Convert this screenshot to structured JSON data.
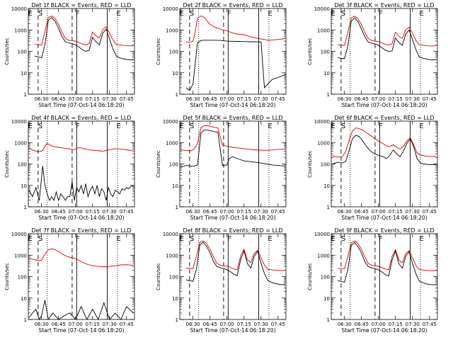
{
  "common": {
    "ylabel": "Counts/sec",
    "xlabel": "Start Time (07-Oct-14 06:18:20)",
    "yticks": [
      "1",
      "10",
      "100",
      "1000",
      "10000"
    ],
    "xticks": [
      "06:30",
      "06:45",
      "07:00",
      "07:15",
      "07:30",
      "07:45"
    ],
    "colors": {
      "events": "#000000",
      "lld": "#dd0000"
    }
  },
  "chart_data": [
    {
      "type": "line",
      "title": "Det 1f BLACK = Events, RED = LLD",
      "region_labels": [
        "E",
        "S",
        "F",
        "E"
      ],
      "xlim": [
        "06:18:20",
        "07:52"
      ],
      "ylim": [
        1,
        10000
      ],
      "yscale": "log",
      "x": [
        "06:24",
        "06:30",
        "06:33",
        "06:36",
        "06:39",
        "06:42",
        "06:45",
        "06:48",
        "06:51",
        "06:54",
        "06:57",
        "07:00",
        "07:03",
        "07:06",
        "07:09",
        "07:12",
        "07:15",
        "07:18",
        "07:21",
        "07:24",
        "07:27",
        "07:30",
        "07:33",
        "07:36",
        "07:39",
        "07:42",
        "07:45",
        "07:48",
        "07:51"
      ],
      "series": [
        {
          "name": "Events",
          "values": [
            60,
            50,
            200,
            2800,
            3800,
            2500,
            1200,
            500,
            280,
            250,
            230,
            200,
            160,
            120,
            100,
            110,
            450,
            280,
            200,
            700,
            1100,
            380,
            130,
            60,
            50,
            45,
            42,
            40,
            42
          ]
        },
        {
          "name": "LLD",
          "values": [
            210,
            200,
            850,
            3800,
            4500,
            3400,
            1800,
            800,
            400,
            330,
            310,
            300,
            260,
            220,
            200,
            230,
            800,
            520,
            420,
            1050,
            1400,
            720,
            330,
            210,
            200,
            190,
            185,
            180,
            185
          ]
        }
      ]
    },
    {
      "type": "line",
      "title": "Det 2f BLACK = Events, RED = LLD",
      "region_labels": [
        "E",
        "S",
        "F",
        "E"
      ],
      "xlim": [
        "06:18:20",
        "07:52"
      ],
      "ylim": [
        1,
        10000
      ],
      "yscale": "log",
      "x": [
        "06:24",
        "06:27",
        "06:30",
        "06:32",
        "06:34",
        "06:37",
        "06:40",
        "06:45",
        "06:50",
        "06:55",
        "07:00",
        "07:05",
        "07:10",
        "07:15",
        "07:20",
        "07:25",
        "07:30",
        "07:33",
        "07:36",
        "07:40",
        "07:45",
        "07:51"
      ],
      "series": [
        {
          "name": "Events",
          "values": [
            2,
            1.5,
            3,
            30,
            250,
            320,
            330,
            330,
            330,
            320,
            300,
            295,
            290,
            285,
            280,
            280,
            275,
            2,
            3,
            5,
            6,
            8
          ]
        },
        {
          "name": "LLD",
          "values": [
            280,
            260,
            300,
            900,
            3500,
            4500,
            3800,
            1800,
            1300,
            1050,
            900,
            720,
            620,
            600,
            490,
            420,
            380,
            360,
            330,
            340,
            360,
            390
          ]
        }
      ]
    },
    {
      "type": "line",
      "title": "Det 3f BLACK = Events, RED = LLD",
      "region_labels": [
        "E",
        "S",
        "F",
        "E"
      ],
      "xlim": [
        "06:18:20",
        "07:52"
      ],
      "ylim": [
        1,
        10000
      ],
      "yscale": "log",
      "x": [
        "06:24",
        "06:30",
        "06:33",
        "06:36",
        "06:39",
        "06:42",
        "06:45",
        "06:48",
        "06:51",
        "06:54",
        "06:57",
        "07:00",
        "07:03",
        "07:06",
        "07:09",
        "07:12",
        "07:15",
        "07:18",
        "07:21",
        "07:24",
        "07:27",
        "07:30",
        "07:33",
        "07:36",
        "07:39",
        "07:42",
        "07:45",
        "07:48",
        "07:51"
      ],
      "series": [
        {
          "name": "Events",
          "values": [
            50,
            45,
            180,
            2600,
            3700,
            2400,
            1100,
            480,
            270,
            240,
            220,
            195,
            150,
            115,
            100,
            105,
            420,
            260,
            190,
            650,
            1000,
            350,
            120,
            55,
            48,
            44,
            41,
            40,
            41
          ]
        },
        {
          "name": "LLD",
          "values": [
            200,
            190,
            800,
            3700,
            4400,
            3300,
            1750,
            780,
            390,
            320,
            300,
            290,
            250,
            215,
            195,
            225,
            780,
            500,
            410,
            1000,
            1350,
            700,
            320,
            205,
            195,
            185,
            180,
            178,
            182
          ]
        }
      ]
    },
    {
      "type": "line",
      "title": "Det 4f BLACK = Events, RED = LLD",
      "region_labels": [
        "E",
        "S",
        "F",
        "E"
      ],
      "xlim": [
        "06:18:20",
        "07:52"
      ],
      "ylim": [
        1,
        10000
      ],
      "yscale": "log",
      "x": [
        "06:19",
        "06:22",
        "06:25",
        "06:28",
        "06:31",
        "06:33",
        "06:35",
        "06:37",
        "06:39",
        "06:41",
        "06:43",
        "06:45",
        "06:47",
        "06:49",
        "06:51",
        "06:53",
        "06:55",
        "06:57",
        "06:59",
        "07:01",
        "07:03",
        "07:05",
        "07:07",
        "07:09",
        "07:11",
        "07:13",
        "07:15",
        "07:17",
        "07:19",
        "07:21",
        "07:23",
        "07:25",
        "07:27",
        "07:29",
        "07:31",
        "07:33",
        "07:35",
        "07:37",
        "07:39",
        "07:41",
        "07:43",
        "07:45",
        "07:47",
        "07:49",
        "07:51"
      ],
      "series": [
        {
          "name": "Events",
          "values": [
            6,
            3,
            8,
            2,
            80,
            10,
            4,
            2,
            3,
            2,
            5,
            2,
            4,
            3,
            2,
            3,
            3,
            15,
            2,
            8,
            5,
            10,
            4,
            12,
            3,
            6,
            9,
            4,
            10,
            3,
            7,
            5,
            2,
            8,
            4,
            3,
            6,
            5,
            4,
            7,
            6,
            8,
            7,
            9,
            10
          ]
        },
        {
          "name": "LLD",
          "values": [
            550,
            450,
            400,
            380,
            420,
            700,
            900,
            800,
            700,
            650,
            620,
            600,
            580,
            560,
            540,
            520,
            500,
            480,
            470,
            520,
            600,
            560,
            520,
            490,
            470,
            450,
            440,
            430,
            420,
            410,
            400,
            400,
            420,
            450,
            480,
            500,
            520,
            510,
            500,
            490,
            480,
            460,
            440,
            420,
            410
          ]
        }
      ]
    },
    {
      "type": "line",
      "title": "Det 5f BLACK = Events, RED = LLD",
      "region_labels": [
        "E",
        "S",
        "F",
        "E"
      ],
      "xlim": [
        "06:18:20",
        "07:52"
      ],
      "ylim": [
        1,
        10000
      ],
      "yscale": "log",
      "x": [
        "06:19",
        "06:24",
        "06:28",
        "06:31",
        "06:34",
        "06:37",
        "06:40",
        "06:43",
        "06:45",
        "06:48",
        "06:52",
        "06:56",
        "07:00",
        "07:02",
        "07:05",
        "07:10",
        "07:15",
        "07:20",
        "07:25",
        "07:30",
        "07:35",
        "07:40",
        "07:45",
        "07:51"
      ],
      "series": [
        {
          "name": "Events",
          "values": [
            70,
            85,
            80,
            80,
            90,
            2800,
            3800,
            3800,
            3600,
            3300,
            3000,
            85,
            90,
            180,
            220,
            170,
            140,
            130,
            120,
            110,
            100,
            90,
            85,
            80
          ]
        },
        {
          "name": "LLD",
          "values": [
            450,
            420,
            410,
            500,
            900,
            5000,
            6200,
            6100,
            5800,
            5200,
            4800,
            750,
            680,
            650,
            600,
            560,
            520,
            480,
            460,
            440,
            430,
            450,
            480,
            500
          ]
        }
      ]
    },
    {
      "type": "line",
      "title": "Det 6f BLACK = Events, RED = LLD",
      "region_labels": [
        "E",
        "S",
        "F",
        "E"
      ],
      "xlim": [
        "06:18:20",
        "07:52"
      ],
      "ylim": [
        1,
        10000
      ],
      "yscale": "log",
      "x": [
        "06:19",
        "06:24",
        "06:28",
        "06:31",
        "06:34",
        "06:37",
        "06:40",
        "06:43",
        "06:46",
        "06:49",
        "06:52",
        "06:55",
        "06:58",
        "07:01",
        "07:04",
        "07:07",
        "07:10",
        "07:13",
        "07:16",
        "07:19",
        "07:22",
        "07:25",
        "07:28",
        "07:31",
        "07:34",
        "07:37",
        "07:40",
        "07:43",
        "07:46",
        "07:51"
      ],
      "series": [
        {
          "name": "Events",
          "values": [
            100,
            120,
            110,
            130,
            400,
            1500,
            2200,
            1900,
            1200,
            700,
            450,
            330,
            280,
            240,
            220,
            180,
            250,
            450,
            300,
            220,
            400,
            900,
            1500,
            650,
            180,
            110,
            100,
            95,
            92,
            95
          ]
        },
        {
          "name": "LLD",
          "values": [
            240,
            210,
            220,
            380,
            1200,
            3500,
            4800,
            4500,
            3800,
            3000,
            2300,
            1800,
            1400,
            1100,
            900,
            700,
            650,
            800,
            600,
            500,
            650,
            1200,
            1700,
            800,
            330,
            260,
            240,
            230,
            225,
            230
          ]
        }
      ]
    },
    {
      "type": "line",
      "title": "Det 7f BLACK = Events, RED = LLD",
      "region_labels": [
        "E",
        "S",
        "F",
        "E"
      ],
      "xlim": [
        "06:18:20",
        "07:52"
      ],
      "ylim": [
        1,
        10000
      ],
      "yscale": "log",
      "x": [
        "06:19",
        "06:22",
        "06:25",
        "06:28",
        "06:30",
        "06:33",
        "06:36",
        "06:40",
        "06:45",
        "06:50",
        "06:55",
        "07:00",
        "07:05",
        "07:10",
        "07:15",
        "07:20",
        "07:25",
        "07:30",
        "07:35",
        "07:40",
        "07:45",
        "07:51"
      ],
      "series": [
        {
          "name": "Events",
          "values": [
            1.2,
            2,
            3,
            1,
            1.5,
            8,
            1,
            2,
            1,
            1.5,
            2,
            1,
            4,
            1,
            3,
            1,
            6,
            1,
            2,
            1,
            4,
            2
          ]
        },
        {
          "name": "LLD",
          "values": [
            700,
            650,
            600,
            550,
            600,
            1100,
            1800,
            2000,
            1500,
            1000,
            800,
            700,
            500,
            380,
            320,
            300,
            290,
            300,
            320,
            350,
            360,
            330
          ]
        }
      ]
    },
    {
      "type": "line",
      "title": "Det 8f BLACK = Events, RED = LLD",
      "region_labels": [
        "E",
        "S",
        "F",
        "E"
      ],
      "xlim": [
        "06:18:20",
        "07:52"
      ],
      "ylim": [
        1,
        10000
      ],
      "yscale": "log",
      "x": [
        "06:24",
        "06:30",
        "06:33",
        "06:36",
        "06:39",
        "06:42",
        "06:45",
        "06:48",
        "06:51",
        "06:54",
        "06:57",
        "07:00",
        "07:03",
        "07:06",
        "07:09",
        "07:12",
        "07:15",
        "07:18",
        "07:21",
        "07:24",
        "07:27",
        "07:30",
        "07:33",
        "07:36",
        "07:39",
        "07:42",
        "07:45",
        "07:48",
        "07:51"
      ],
      "series": [
        {
          "name": "Events",
          "values": [
            70,
            60,
            220,
            3000,
            4000,
            2600,
            1300,
            520,
            300,
            260,
            240,
            210,
            170,
            130,
            110,
            600,
            1600,
            400,
            250,
            900,
            1500,
            420,
            140,
            65,
            55,
            48,
            45,
            42,
            44
          ]
        },
        {
          "name": "LLD",
          "values": [
            250,
            240,
            900,
            4000,
            4700,
            3500,
            1900,
            850,
            420,
            340,
            320,
            310,
            270,
            230,
            210,
            900,
            1900,
            600,
            450,
            1200,
            1700,
            750,
            340,
            220,
            210,
            200,
            195,
            190,
            195
          ]
        }
      ]
    },
    {
      "type": "line",
      "title": "Det 9f BLACK = Events, RED = LLD",
      "region_labels": [
        "E",
        "S",
        "F",
        "E"
      ],
      "xlim": [
        "06:18:20",
        "07:52"
      ],
      "ylim": [
        1,
        10000
      ],
      "yscale": "log",
      "x": [
        "06:24",
        "06:30",
        "06:33",
        "06:36",
        "06:39",
        "06:42",
        "06:45",
        "06:48",
        "06:51",
        "06:54",
        "06:57",
        "07:00",
        "07:03",
        "07:06",
        "07:09",
        "07:12",
        "07:15",
        "07:18",
        "07:21",
        "07:24",
        "07:27",
        "07:30",
        "07:33",
        "07:36",
        "07:39",
        "07:42",
        "07:45",
        "07:48",
        "07:51"
      ],
      "series": [
        {
          "name": "Events",
          "values": [
            65,
            55,
            210,
            2900,
            3900,
            2500,
            1250,
            500,
            290,
            255,
            235,
            205,
            165,
            125,
            105,
            580,
            1550,
            390,
            245,
            880,
            1450,
            410,
            135,
            62,
            52,
            46,
            43,
            41,
            43
          ]
        },
        {
          "name": "LLD",
          "values": [
            245,
            235,
            880,
            3900,
            4600,
            3450,
            1850,
            830,
            410,
            335,
            315,
            305,
            265,
            225,
            205,
            880,
            1850,
            590,
            440,
            1180,
            1650,
            740,
            335,
            215,
            205,
            195,
            190,
            186,
            190
          ]
        }
      ]
    }
  ]
}
